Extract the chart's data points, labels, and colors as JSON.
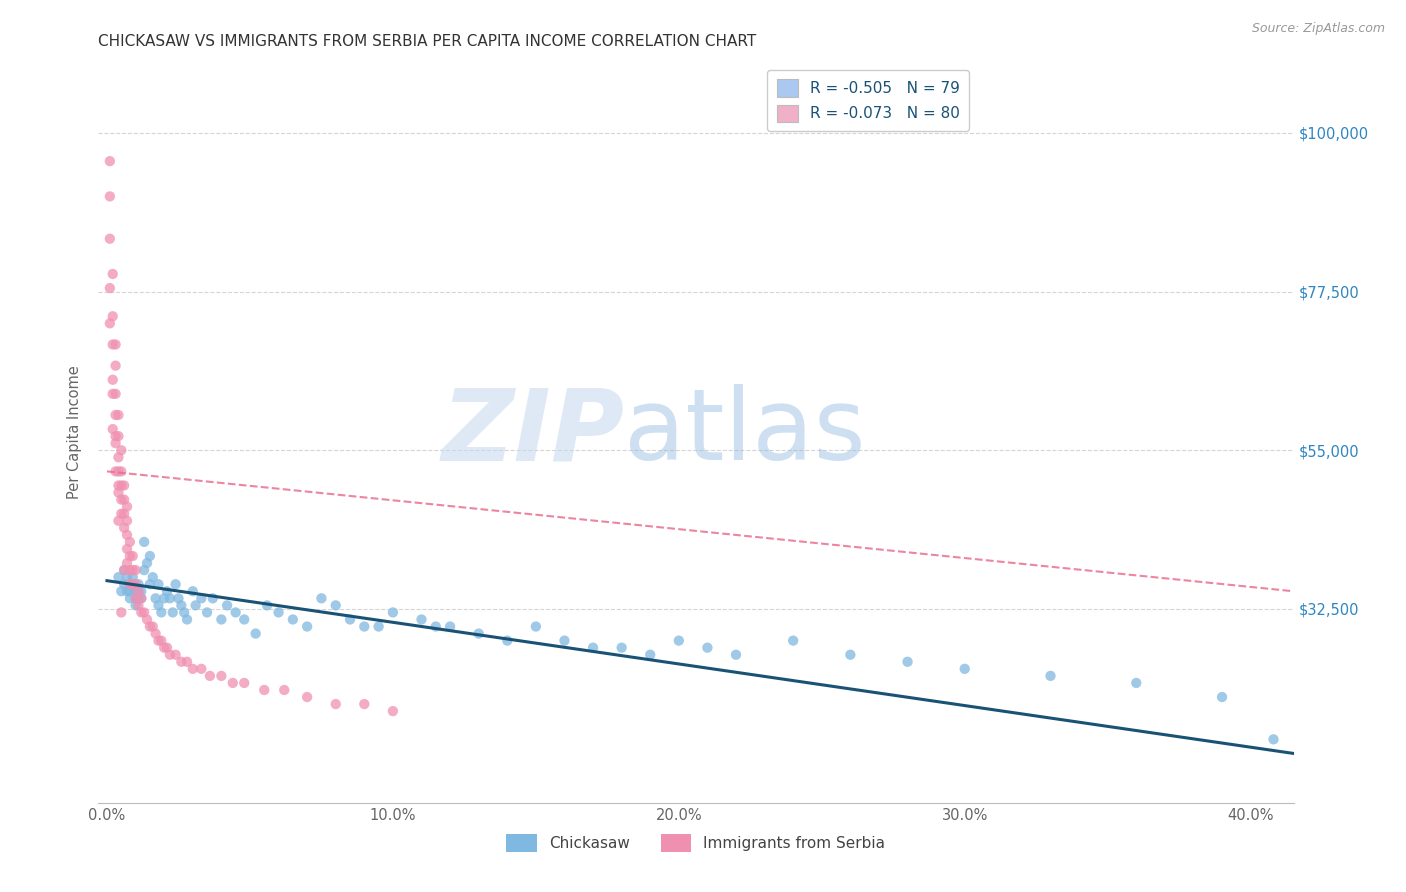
{
  "title": "CHICKASAW VS IMMIGRANTS FROM SERBIA PER CAPITA INCOME CORRELATION CHART",
  "source": "Source: ZipAtlas.com",
  "ylabel": "Per Capita Income",
  "xlabel_ticks": [
    "0.0%",
    "10.0%",
    "20.0%",
    "30.0%",
    "40.0%"
  ],
  "xlabel_vals": [
    0.0,
    0.1,
    0.2,
    0.3,
    0.4
  ],
  "ytick_labels": [
    "$100,000",
    "$77,500",
    "$55,000",
    "$32,500"
  ],
  "ytick_vals": [
    100000,
    77500,
    55000,
    32500
  ],
  "ylim": [
    5000,
    110000
  ],
  "xlim": [
    -0.003,
    0.415
  ],
  "legend_series": [
    {
      "label_r": "R = -0.505",
      "label_n": "N = 79",
      "color": "#aac8f0"
    },
    {
      "label_r": "R = -0.073",
      "label_n": "N = 80",
      "color": "#f0b0c8"
    }
  ],
  "legend_bottom": [
    "Chickasaw",
    "Immigrants from Serbia"
  ],
  "chickasaw_color": "#7fb8e0",
  "serbia_color": "#f090b0",
  "trendline_chickasaw_color": "#1a5276",
  "trendline_serbia_color": "#e87090",
  "watermark_zip": "ZIP",
  "watermark_atlas": "atlas",
  "background_color": "#ffffff",
  "grid_color": "#d5d5d5",
  "chickasaw_x": [
    0.004,
    0.005,
    0.006,
    0.006,
    0.007,
    0.007,
    0.008,
    0.008,
    0.008,
    0.009,
    0.009,
    0.01,
    0.01,
    0.01,
    0.011,
    0.011,
    0.011,
    0.012,
    0.012,
    0.013,
    0.013,
    0.014,
    0.015,
    0.015,
    0.016,
    0.017,
    0.018,
    0.018,
    0.019,
    0.02,
    0.021,
    0.022,
    0.023,
    0.024,
    0.025,
    0.026,
    0.027,
    0.028,
    0.03,
    0.031,
    0.033,
    0.035,
    0.037,
    0.04,
    0.042,
    0.045,
    0.048,
    0.052,
    0.056,
    0.06,
    0.065,
    0.07,
    0.075,
    0.08,
    0.085,
    0.09,
    0.095,
    0.1,
    0.11,
    0.115,
    0.12,
    0.13,
    0.14,
    0.15,
    0.16,
    0.17,
    0.18,
    0.19,
    0.2,
    0.21,
    0.22,
    0.24,
    0.26,
    0.28,
    0.3,
    0.33,
    0.36,
    0.39,
    0.408
  ],
  "chickasaw_y": [
    37000,
    35000,
    38000,
    36000,
    37000,
    35000,
    36000,
    35000,
    34000,
    37000,
    36000,
    35000,
    34000,
    33000,
    36000,
    35000,
    34000,
    35000,
    34000,
    38000,
    42000,
    39000,
    40000,
    36000,
    37000,
    34000,
    36000,
    33000,
    32000,
    34000,
    35000,
    34000,
    32000,
    36000,
    34000,
    33000,
    32000,
    31000,
    35000,
    33000,
    34000,
    32000,
    34000,
    31000,
    33000,
    32000,
    31000,
    29000,
    33000,
    32000,
    31000,
    30000,
    34000,
    33000,
    31000,
    30000,
    30000,
    32000,
    31000,
    30000,
    30000,
    29000,
    28000,
    30000,
    28000,
    27000,
    27000,
    26000,
    28000,
    27000,
    26000,
    28000,
    26000,
    25000,
    24000,
    23000,
    22000,
    20000,
    14000
  ],
  "serbia_x": [
    0.001,
    0.001,
    0.001,
    0.002,
    0.002,
    0.002,
    0.002,
    0.003,
    0.003,
    0.003,
    0.003,
    0.003,
    0.004,
    0.004,
    0.004,
    0.004,
    0.004,
    0.005,
    0.005,
    0.005,
    0.005,
    0.005,
    0.006,
    0.006,
    0.006,
    0.006,
    0.007,
    0.007,
    0.007,
    0.007,
    0.007,
    0.008,
    0.008,
    0.008,
    0.008,
    0.009,
    0.009,
    0.009,
    0.01,
    0.01,
    0.01,
    0.011,
    0.011,
    0.012,
    0.012,
    0.013,
    0.014,
    0.015,
    0.016,
    0.017,
    0.018,
    0.019,
    0.02,
    0.021,
    0.022,
    0.024,
    0.026,
    0.028,
    0.03,
    0.033,
    0.036,
    0.04,
    0.044,
    0.048,
    0.055,
    0.062,
    0.07,
    0.08,
    0.09,
    0.1,
    0.001,
    0.001,
    0.002,
    0.002,
    0.003,
    0.003,
    0.004,
    0.004,
    0.005,
    0.006
  ],
  "serbia_y": [
    96000,
    91000,
    85000,
    80000,
    74000,
    70000,
    65000,
    70000,
    67000,
    63000,
    60000,
    57000,
    60000,
    57000,
    54000,
    52000,
    50000,
    55000,
    52000,
    50000,
    48000,
    46000,
    50000,
    48000,
    46000,
    44000,
    47000,
    45000,
    43000,
    41000,
    39000,
    42000,
    40000,
    38000,
    36000,
    40000,
    38000,
    36000,
    38000,
    36000,
    34000,
    35000,
    33000,
    34000,
    32000,
    32000,
    31000,
    30000,
    30000,
    29000,
    28000,
    28000,
    27000,
    27000,
    26000,
    26000,
    25000,
    25000,
    24000,
    24000,
    23000,
    23000,
    22000,
    22000,
    21000,
    21000,
    20000,
    19000,
    19000,
    18000,
    73000,
    78000,
    58000,
    63000,
    52000,
    56000,
    45000,
    49000,
    32000,
    38000
  ],
  "trendline_chickasaw_x0": 0.0,
  "trendline_chickasaw_x1": 0.415,
  "trendline_chickasaw_y0": 36500,
  "trendline_chickasaw_y1": 12000,
  "trendline_serbia_x0": 0.0,
  "trendline_serbia_x1": 0.415,
  "trendline_serbia_y0": 52000,
  "trendline_serbia_y1": 35000
}
